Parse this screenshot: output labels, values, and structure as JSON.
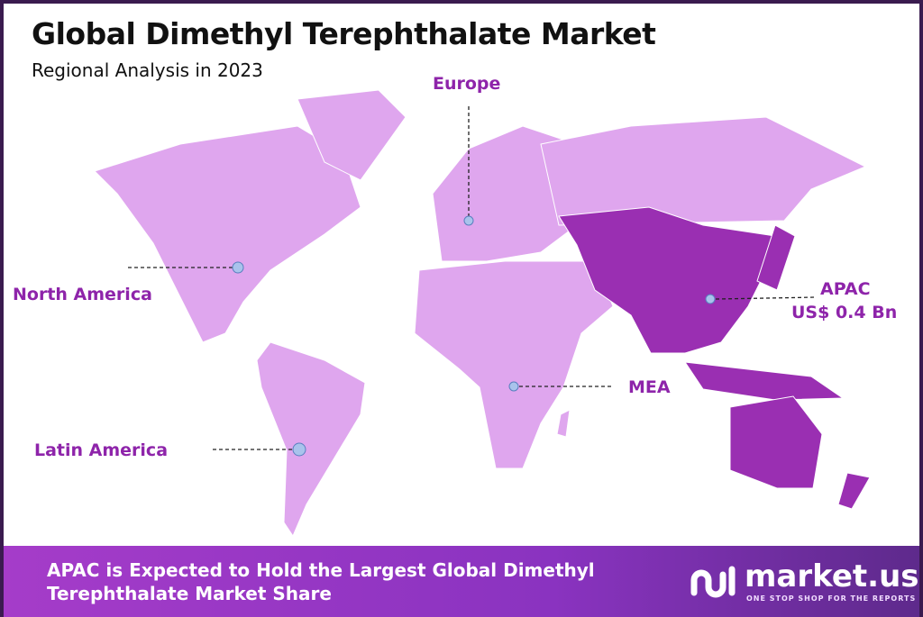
{
  "header": {
    "title": "Global Dimethyl Terephthalate Market",
    "subtitle": "Regional Analysis in 2023"
  },
  "regions": [
    {
      "name": "North America",
      "highlighted": false
    },
    {
      "name": "Europe",
      "highlighted": false
    },
    {
      "name": "APAC",
      "value": "US$ 0.4 Bn",
      "highlighted": true
    },
    {
      "name": "MEA",
      "highlighted": false
    },
    {
      "name": "Latin America",
      "highlighted": false
    }
  ],
  "colors": {
    "land": "#dfa6ee",
    "highlight": "#9a2fb2",
    "label": "#8e24aa",
    "marker": "#a9c3ec"
  },
  "banner": {
    "text_line1": "APAC is Expected to Hold the Largest Global Dimethyl",
    "text_line2": "Terephthalate Market Share"
  },
  "logo": {
    "name": "market.us",
    "tagline": "ONE STOP SHOP FOR THE REPORTS"
  }
}
